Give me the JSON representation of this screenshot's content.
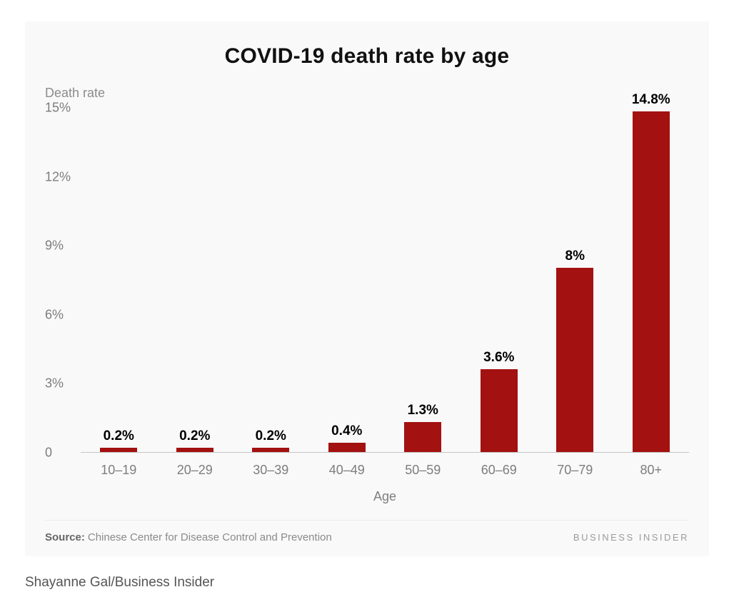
{
  "chart_data": {
    "type": "bar",
    "title": "COVID-19 death rate by age",
    "categories": [
      "10–19",
      "20–29",
      "30–39",
      "40–49",
      "50–59",
      "60–69",
      "70–79",
      "80+"
    ],
    "values": [
      0.2,
      0.2,
      0.2,
      0.4,
      1.3,
      3.6,
      8,
      14.8
    ],
    "value_labels": [
      "0.2%",
      "0.2%",
      "0.2%",
      "0.4%",
      "1.3%",
      "3.6%",
      "8%",
      "14.8%"
    ],
    "xlabel": "Age",
    "ylabel": "Death rate",
    "ylim": [
      0,
      15
    ],
    "yticks": [
      0,
      3,
      6,
      9,
      12,
      15
    ],
    "ytick_labels": [
      "0",
      "3%",
      "6%",
      "9%",
      "12%",
      "15%"
    ],
    "grid": false,
    "legend": "none",
    "bar_color": "#a31111",
    "axis_line_color": "#c4c4c4"
  },
  "footer": {
    "source_label": "Source:",
    "source_text": "Chinese Center for Disease Control and Prevention",
    "brand": "BUSINESS INSIDER"
  },
  "page": {
    "credit": "Shayanne Gal/Business Insider"
  }
}
